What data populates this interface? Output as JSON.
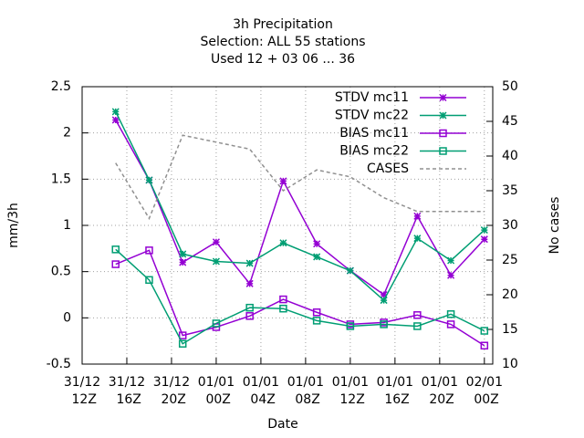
{
  "chart_data": {
    "type": "line",
    "title": [
      "3h Precipitation",
      "Selection: ALL      55 stations",
      "Used  12 + 03 06 ... 36"
    ],
    "x_label": "Date",
    "y_label": "mm/3h",
    "y2_label": "No cases",
    "x": [
      3,
      6,
      9,
      12,
      15,
      18,
      21,
      24,
      27,
      30,
      33,
      36
    ],
    "xlim": [
      0,
      36.75
    ],
    "xticks": [
      {
        "value": 0,
        "label": "31/12 12Z"
      },
      {
        "value": 4,
        "label": "31/12 16Z"
      },
      {
        "value": 8,
        "label": "31/12 20Z"
      },
      {
        "value": 12,
        "label": "01/01 00Z"
      },
      {
        "value": 16,
        "label": "01/01 04Z"
      },
      {
        "value": 20,
        "label": "01/01 08Z"
      },
      {
        "value": 24,
        "label": "01/01 12Z"
      },
      {
        "value": 28,
        "label": "01/01 16Z"
      },
      {
        "value": 32,
        "label": "01/01 20Z"
      },
      {
        "value": 36,
        "label": "02/01 00Z"
      }
    ],
    "ylim": [
      -0.5,
      2.5
    ],
    "yticks": [
      -0.5,
      0,
      0.5,
      1,
      1.5,
      2,
      2.5
    ],
    "y2lim": [
      10,
      50
    ],
    "y2ticks": [
      10,
      15,
      20,
      25,
      30,
      35,
      40,
      45,
      50
    ],
    "grid": true,
    "legend": "top-right",
    "series": [
      {
        "name": "STDV mc11",
        "color": "#9400d3",
        "marker": "star",
        "dash": false,
        "values": [
          2.14,
          1.49,
          0.6,
          0.82,
          0.37,
          1.48,
          0.8,
          0.51,
          0.25,
          1.1,
          0.46,
          0.85
        ]
      },
      {
        "name": "STDV mc22",
        "color": "#009e73",
        "marker": "star",
        "dash": false,
        "values": [
          2.23,
          1.49,
          0.69,
          0.61,
          0.59,
          0.81,
          0.66,
          0.51,
          0.19,
          0.86,
          0.62,
          0.95
        ]
      },
      {
        "name": "BIAS mc11",
        "color": "#9400d3",
        "marker": "square",
        "dash": false,
        "values": [
          0.58,
          0.73,
          -0.19,
          -0.1,
          0.02,
          0.2,
          0.06,
          -0.07,
          -0.05,
          0.03,
          -0.07,
          -0.3
        ]
      },
      {
        "name": "BIAS mc22",
        "color": "#009e73",
        "marker": "square",
        "dash": false,
        "values": [
          0.74,
          0.41,
          -0.28,
          -0.06,
          0.11,
          0.1,
          -0.03,
          -0.09,
          -0.07,
          -0.09,
          0.04,
          -0.14
        ]
      },
      {
        "name": "CASES",
        "color": "#909090",
        "marker": "none",
        "dash": true,
        "axis": "y2",
        "values": [
          39,
          31,
          43,
          42,
          41,
          35,
          38,
          37,
          34,
          32,
          32,
          32
        ]
      }
    ]
  }
}
